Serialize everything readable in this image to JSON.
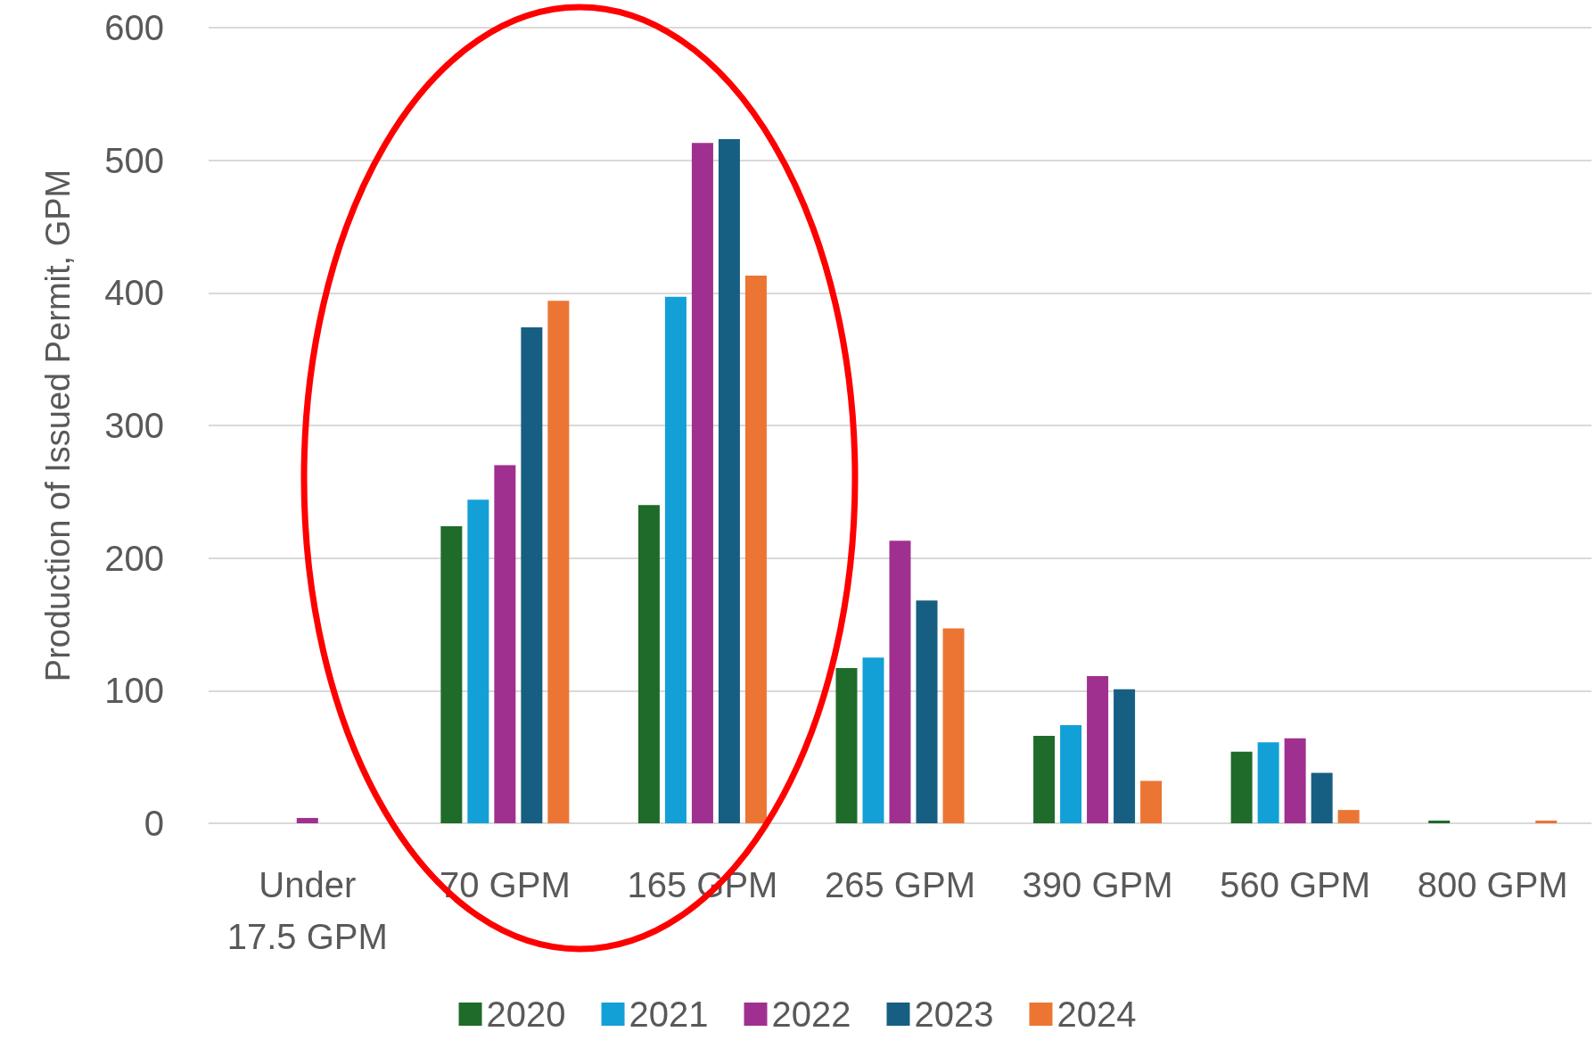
{
  "chart_data": {
    "type": "bar",
    "ylabel": "Production of Issued Permit, GPM",
    "categories": [
      "Under\n17.5 GPM",
      "70 GPM",
      "165 GPM",
      "265 GPM",
      "390 GPM",
      "560 GPM",
      "800 GPM"
    ],
    "series": [
      {
        "name": "2020",
        "color": "#1e6b2a",
        "values": [
          null,
          224,
          240,
          117,
          66,
          54,
          2
        ]
      },
      {
        "name": "2021",
        "color": "#12a0d7",
        "values": [
          null,
          244,
          397,
          125,
          74,
          61,
          null
        ]
      },
      {
        "name": "2022",
        "color": "#a0308f",
        "values": [
          4,
          270,
          513,
          213,
          111,
          64,
          null
        ]
      },
      {
        "name": "2023",
        "color": "#175f82",
        "values": [
          null,
          374,
          516,
          168,
          101,
          38,
          null
        ]
      },
      {
        "name": "2024",
        "color": "#ec7533",
        "values": [
          null,
          394,
          413,
          147,
          32,
          10,
          2
        ]
      }
    ],
    "ylim": [
      0,
      600
    ],
    "yticks": [
      0,
      100,
      200,
      300,
      400,
      500,
      600
    ],
    "grid": "y",
    "legend": "bottom"
  }
}
